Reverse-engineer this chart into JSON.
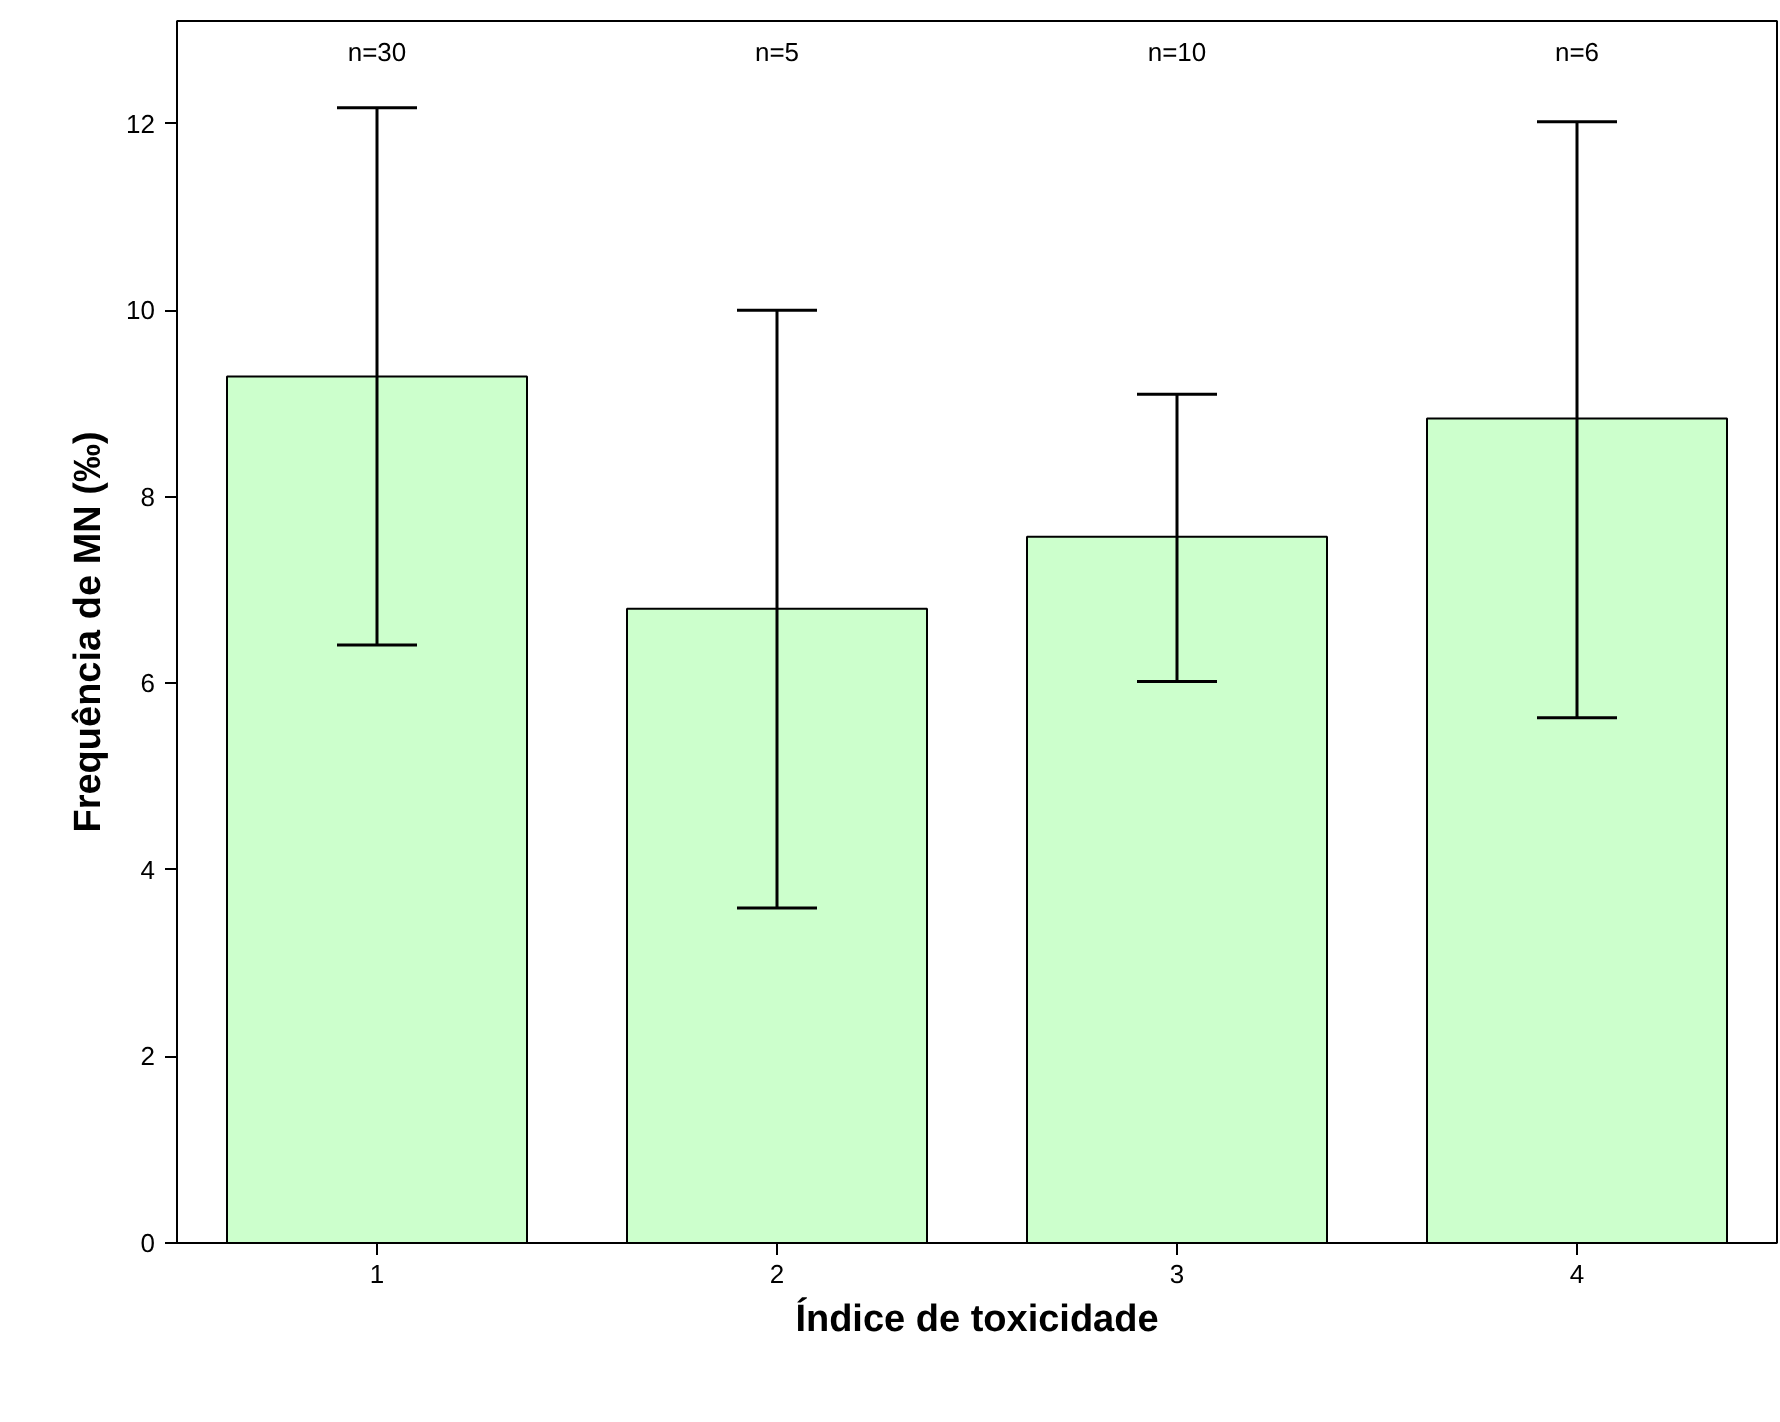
{
  "chart_data": {
    "type": "bar",
    "xlabel": "Índice de toxicidade",
    "ylabel": "Frequência de MN (‰)",
    "categories": [
      "1",
      "2",
      "3",
      "4"
    ],
    "values": [
      9.29,
      6.8,
      7.57,
      8.84
    ],
    "color": "#ccffcc",
    "errors": [
      [
        6.41,
        12.17
      ],
      [
        3.59,
        10.0
      ],
      [
        6.02,
        9.1
      ],
      [
        5.63,
        12.02
      ]
    ],
    "ylim": [
      0,
      13.1
    ],
    "yticks": [
      0,
      2,
      4,
      6,
      8,
      10,
      12
    ],
    "grid": false,
    "annotations": [
      "n=30",
      "n=5",
      "n=10",
      "n=6"
    ]
  }
}
